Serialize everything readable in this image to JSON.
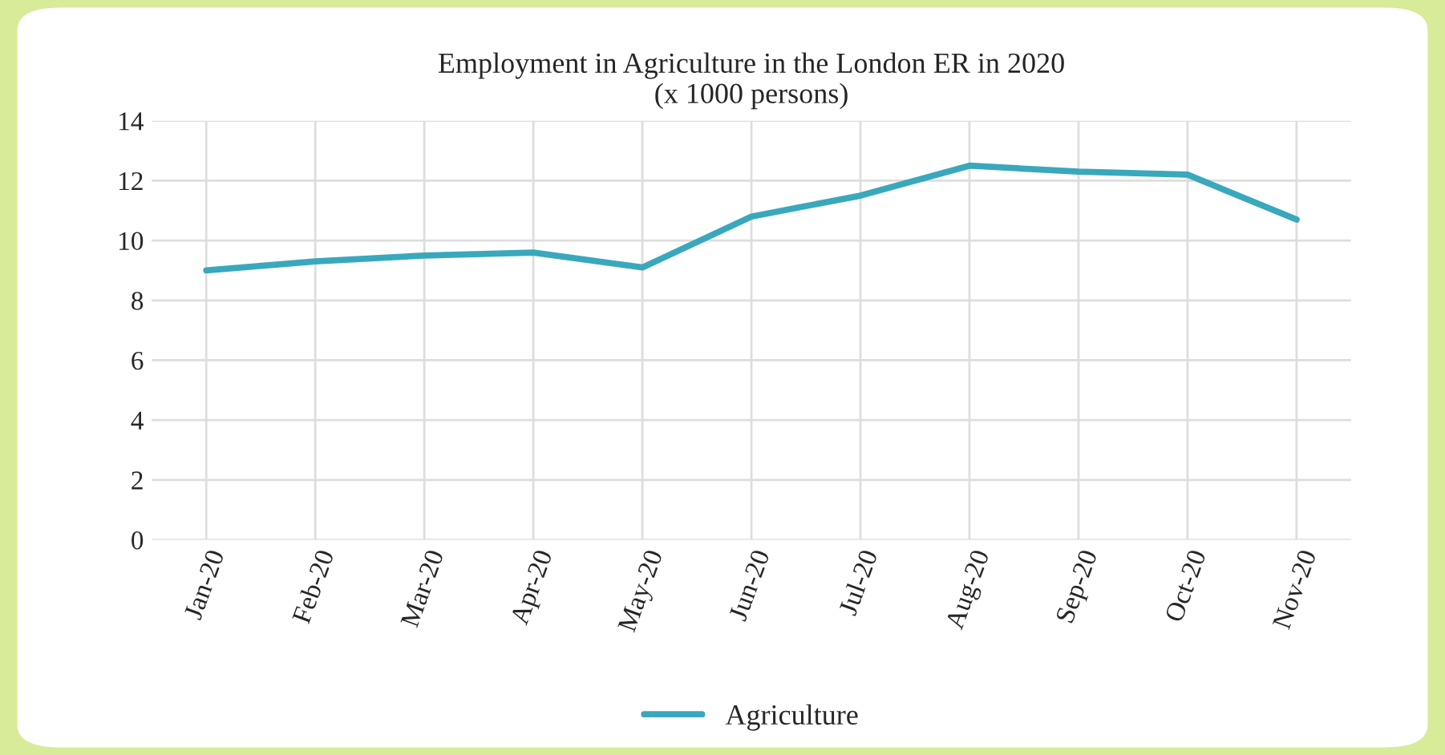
{
  "chart_data": {
    "type": "line",
    "title": "Employment in Agriculture in the London ER in 2020\n(x 1000 persons)",
    "categories": [
      "Jan-20",
      "Feb-20",
      "Mar-20",
      "Apr-20",
      "May-20",
      "Jun-20",
      "Jul-20",
      "Aug-20",
      "Sep-20",
      "Oct-20",
      "Nov-20"
    ],
    "series": [
      {
        "name": "Agriculture",
        "color": "#3aa8bc",
        "values": [
          9.0,
          9.3,
          9.5,
          9.6,
          9.1,
          10.8,
          11.5,
          12.5,
          12.3,
          12.2,
          10.7
        ]
      }
    ],
    "ylim": [
      0,
      14
    ],
    "yticks": [
      0,
      2,
      4,
      6,
      8,
      10,
      12,
      14
    ],
    "grid": true,
    "legend": "bottom",
    "marker": "none",
    "line_style": "solid"
  }
}
